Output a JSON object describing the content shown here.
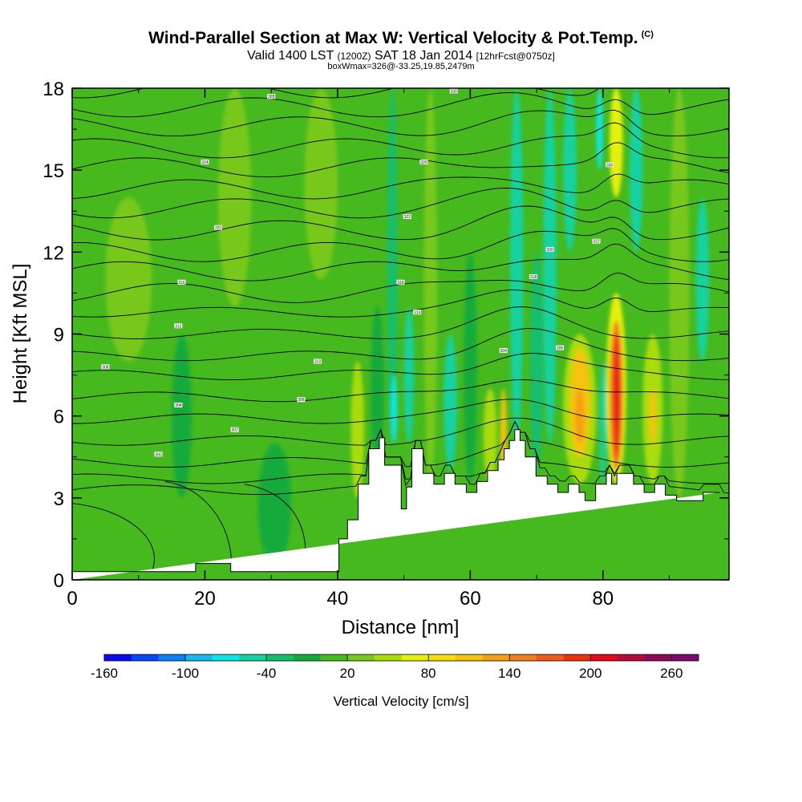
{
  "header": {
    "title": "Wind-Parallel Section at Max W: Vertical Velocity & Pot.Temp.",
    "copyright": "(C)",
    "valid_main": "Valid 1400 LST",
    "valid_z": "(1200Z)",
    "valid_date": "SAT 18 Jan 2014",
    "forecast_info": "[12hrFcst@0750z]",
    "box_info": "boxWmax=326@-33.25,19.85,2479m"
  },
  "colorbar": {
    "label": "Vertical Velocity [cm/s]",
    "tick_labels": [
      "-160",
      "-100",
      "-40",
      "20",
      "80",
      "140",
      "200",
      "260"
    ],
    "colors": [
      "#0a0af0",
      "#0a46f5",
      "#0a82f5",
      "#14b9f0",
      "#0ae6e6",
      "#14d2a0",
      "#14be6e",
      "#14aa3c",
      "#46b91e",
      "#78c81e",
      "#aadc0a",
      "#e6f00a",
      "#f5dc0a",
      "#f5c30a",
      "#f5a014",
      "#f07d1e",
      "#f05a1e",
      "#eb3214",
      "#e10a1e",
      "#b40a3c",
      "#8c0a5a",
      "#7d0a6e"
    ]
  },
  "chart_data": {
    "type": "heatmap",
    "title": "Wind-Parallel Section at Max W: Vertical Velocity & Pot.Temp.",
    "xlabel": "Distance [nm]",
    "ylabel": "Height [Kft MSL]",
    "xlim": [
      0,
      99
    ],
    "ylim": [
      0,
      18
    ],
    "x_ticks": [
      0,
      20,
      40,
      60,
      80
    ],
    "y_ticks": [
      0,
      3,
      6,
      9,
      12,
      15,
      18
    ],
    "background_color": "#46b91e",
    "cell_colors": {
      "a": "#14aa3c",
      "b": "#46b91e",
      "c": "#78c81e",
      "d": "#aadc0a",
      "e": "#14d2a0",
      "f": "#0ae6e6",
      "g": "#e6f00a",
      "h": "#f5c30a",
      "i": "#f5a014",
      "j": "#f07d1e",
      "k": "#eb3214",
      "l": "#e10a1e",
      "m": "#14be6e"
    },
    "velocity_features": [
      {
        "x": [
          2,
          8
        ],
        "y": [
          14,
          18
        ],
        "c": "b"
      },
      {
        "x": [
          5,
          12
        ],
        "y": [
          8,
          14
        ],
        "c": "c"
      },
      {
        "x": [
          15,
          18
        ],
        "y": [
          3,
          9
        ],
        "c": "a"
      },
      {
        "x": [
          22,
          27
        ],
        "y": [
          10,
          18
        ],
        "c": "c"
      },
      {
        "x": [
          28,
          33
        ],
        "y": [
          0.5,
          5
        ],
        "c": "a"
      },
      {
        "x": [
          35,
          40
        ],
        "y": [
          11,
          18
        ],
        "c": "c"
      },
      {
        "x": [
          42,
          44
        ],
        "y": [
          3,
          8
        ],
        "c": "d"
      },
      {
        "x": [
          45,
          47
        ],
        "y": [
          4,
          10
        ],
        "c": "a"
      },
      {
        "x": [
          47.5,
          49
        ],
        "y": [
          5,
          18
        ],
        "c": "m"
      },
      {
        "x": [
          48,
          49
        ],
        "y": [
          5,
          7.5
        ],
        "c": "f"
      },
      {
        "x": [
          50,
          51.5
        ],
        "y": [
          5,
          10
        ],
        "c": "e"
      },
      {
        "x": [
          53,
          55
        ],
        "y": [
          3.5,
          18
        ],
        "c": "c"
      },
      {
        "x": [
          56,
          58
        ],
        "y": [
          4,
          9
        ],
        "c": "e"
      },
      {
        "x": [
          59,
          61
        ],
        "y": [
          3.5,
          12
        ],
        "c": "a"
      },
      {
        "x": [
          62,
          64
        ],
        "y": [
          3.5,
          7
        ],
        "c": "d"
      },
      {
        "x": [
          64.5,
          65.5
        ],
        "y": [
          3.5,
          7
        ],
        "c": "h"
      },
      {
        "x": [
          66,
          68
        ],
        "y": [
          5,
          18
        ],
        "c": "e"
      },
      {
        "x": [
          69,
          71
        ],
        "y": [
          4,
          12
        ],
        "c": "m"
      },
      {
        "x": [
          71,
          73
        ],
        "y": [
          5,
          18
        ],
        "c": "e"
      },
      {
        "x": [
          74,
          76
        ],
        "y": [
          12,
          18
        ],
        "c": "e"
      },
      {
        "x": [
          74,
          79
        ],
        "y": [
          3.5,
          9
        ],
        "c": "d"
      },
      {
        "x": [
          75,
          78
        ],
        "y": [
          4.5,
          8.5
        ],
        "c": "h"
      },
      {
        "x": [
          75.8,
          77.2
        ],
        "y": [
          5,
          7
        ],
        "c": "i"
      },
      {
        "x": [
          79.5,
          80.5
        ],
        "y": [
          3.5,
          8
        ],
        "c": "e"
      },
      {
        "x": [
          80.5,
          83.5
        ],
        "y": [
          3.5,
          10.5
        ],
        "c": "g"
      },
      {
        "x": [
          81,
          83
        ],
        "y": [
          4,
          9.5
        ],
        "c": "j"
      },
      {
        "x": [
          81.5,
          82.6
        ],
        "y": [
          4.5,
          9
        ],
        "c": "k"
      },
      {
        "x": [
          81.9,
          82.3
        ],
        "y": [
          5.5,
          8
        ],
        "c": "l"
      },
      {
        "x": [
          81,
          83
        ],
        "y": [
          14,
          18
        ],
        "c": "g"
      },
      {
        "x": [
          79,
          80
        ],
        "y": [
          15,
          18
        ],
        "c": "f"
      },
      {
        "x": [
          84,
          86
        ],
        "y": [
          12,
          18
        ],
        "c": "e"
      },
      {
        "x": [
          86,
          89
        ],
        "y": [
          3.5,
          9
        ],
        "c": "d"
      },
      {
        "x": [
          87,
          88
        ],
        "y": [
          5,
          7
        ],
        "c": "h"
      },
      {
        "x": [
          90,
          93
        ],
        "y": [
          3,
          18
        ],
        "c": "c"
      },
      {
        "x": [
          94,
          96
        ],
        "y": [
          8,
          14
        ],
        "c": "e"
      }
    ],
    "terrain": {
      "x": [
        0,
        18.6,
        18.6,
        23.9,
        23.9,
        40.2,
        40.2,
        41.5,
        41.5,
        43.1,
        43.1,
        44.7,
        44.7,
        46.3,
        46.3,
        47.1,
        47.1,
        49.6,
        49.6,
        50.4,
        50.4,
        51.2,
        51.2,
        52.9,
        52.9,
        54.5,
        54.5,
        56.1,
        56.1,
        57.7,
        57.7,
        59.4,
        59.4,
        61,
        61,
        62.6,
        62.6,
        64.2,
        64.2,
        65.1,
        65.1,
        65.9,
        65.9,
        66.7,
        66.7,
        67.5,
        67.5,
        68.3,
        68.3,
        69.9,
        69.9,
        71.6,
        71.6,
        73.2,
        73.2,
        74.8,
        74.8,
        76.4,
        76.4,
        77.3,
        77.3,
        78.9,
        78.9,
        80.5,
        80.5,
        81.3,
        81.3,
        82.1,
        82.1,
        84.6,
        84.6,
        86.2,
        86.2,
        87.8,
        87.8,
        89.4,
        89.4,
        91.1,
        91.1,
        92.7,
        92.7,
        95.1,
        95.1,
        97.6,
        97.6,
        99
      ],
      "y": [
        0.3,
        0.3,
        0.6,
        0.6,
        0.3,
        0.3,
        1.5,
        1.5,
        2.2,
        2.2,
        3.5,
        3.5,
        4.8,
        4.8,
        5.2,
        5.2,
        4.2,
        4.2,
        2.6,
        2.6,
        3.4,
        3.4,
        4.8,
        4.8,
        3.9,
        3.9,
        3.5,
        3.5,
        3.9,
        3.9,
        3.5,
        3.5,
        3.2,
        3.2,
        3.6,
        3.6,
        4.0,
        4.0,
        4.4,
        4.4,
        4.8,
        4.8,
        5.1,
        5.1,
        5.5,
        5.5,
        5.1,
        5.1,
        4.5,
        4.5,
        3.8,
        3.8,
        3.5,
        3.5,
        3.2,
        3.2,
        3.5,
        3.5,
        3.2,
        3.2,
        2.9,
        2.9,
        3.5,
        3.5,
        3.9,
        3.9,
        3.5,
        3.5,
        3.9,
        3.9,
        3.5,
        3.5,
        3.2,
        3.2,
        3.5,
        3.5,
        3.1,
        3.1,
        2.9,
        2.9,
        2.9,
        2.9,
        3.2,
        3.2
      ]
    },
    "theta_contour_levels_kft": [
      3.3,
      3.7,
      4.3,
      5.1,
      5.9,
      6.7,
      7.5,
      8.2,
      9.0,
      9.8,
      10.5,
      11.3,
      12.0,
      12.8,
      13.6,
      14.3,
      15.1,
      15.8,
      16.6,
      17.3,
      18.0
    ],
    "theta_contour_labels": [
      {
        "x": 13,
        "y": 4.6,
        "text": "300"
      },
      {
        "x": 24.5,
        "y": 5.5,
        "text": "302"
      },
      {
        "x": 16,
        "y": 6.4,
        "text": "304"
      },
      {
        "x": 34.5,
        "y": 6.6,
        "text": "306"
      },
      {
        "x": 5,
        "y": 7.8,
        "text": "308"
      },
      {
        "x": 37,
        "y": 8.0,
        "text": "310"
      },
      {
        "x": 16,
        "y": 9.3,
        "text": "312"
      },
      {
        "x": 52,
        "y": 9.8,
        "text": "314"
      },
      {
        "x": 16.5,
        "y": 10.9,
        "text": "316"
      },
      {
        "x": 49.5,
        "y": 10.9,
        "text": "318"
      },
      {
        "x": 22,
        "y": 12.9,
        "text": "320"
      },
      {
        "x": 50.5,
        "y": 13.3,
        "text": "322"
      },
      {
        "x": 20,
        "y": 15.3,
        "text": "324"
      },
      {
        "x": 53,
        "y": 15.3,
        "text": "326"
      },
      {
        "x": 30,
        "y": 17.7,
        "text": "328"
      },
      {
        "x": 57.5,
        "y": 17.9,
        "text": "330"
      },
      {
        "x": 65,
        "y": 8.4,
        "text": "304"
      },
      {
        "x": 73.5,
        "y": 8.5,
        "text": "306"
      },
      {
        "x": 69.5,
        "y": 11.1,
        "text": "318"
      },
      {
        "x": 72,
        "y": 12.1,
        "text": "320"
      },
      {
        "x": 79,
        "y": 12.4,
        "text": "322"
      },
      {
        "x": 81,
        "y": 15.2,
        "text": "330"
      }
    ]
  }
}
